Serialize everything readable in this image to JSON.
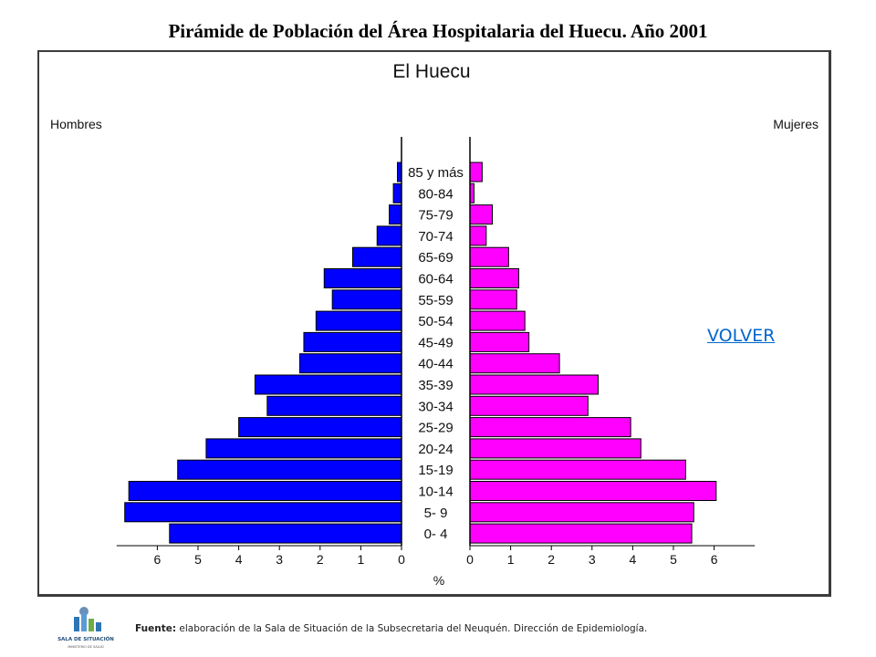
{
  "page": {
    "title": "Pirámide de Población del Área Hospitalaria del Huecu. Año 2001",
    "volver_label": "VOLVER",
    "footer_source_label": "Fuente:",
    "footer_source_text": " elaboración de la Sala de Situación de la Subsecretaria del Neuquén. Dirección de Epidemiología.",
    "logo_text": "SALA DE SITUACIÓN",
    "logo_subtext": "MINISTERIO DE SALUD"
  },
  "colors": {
    "men": "#0000ff",
    "women": "#ff00ff",
    "link": "#0066cc",
    "frame": "#3c3c3c"
  },
  "chart_data": {
    "type": "bar",
    "orientation": "horizontal",
    "title": "El Huecu",
    "left_label": "Hombres",
    "right_label": "Mujeres",
    "xlabel": "%",
    "categories": [
      "85 y más",
      "80-84",
      "75-79",
      "70-74",
      "65-69",
      "60-64",
      "55-59",
      "50-54",
      "45-49",
      "40-44",
      "35-39",
      "30-34",
      "25-29",
      "20-24",
      "15-19",
      "10-14",
      "5- 9",
      "0- 4"
    ],
    "series": [
      {
        "name": "Hombres",
        "values": [
          0.1,
          0.2,
          0.3,
          0.6,
          1.2,
          1.9,
          1.7,
          2.1,
          2.4,
          2.5,
          3.6,
          3.3,
          4.0,
          4.8,
          5.5,
          6.7,
          6.8,
          5.7
        ]
      },
      {
        "name": "Mujeres",
        "values": [
          0.3,
          0.1,
          0.55,
          0.4,
          0.95,
          1.2,
          1.15,
          1.35,
          1.45,
          2.2,
          3.15,
          2.9,
          3.95,
          4.2,
          5.3,
          6.05,
          5.5,
          5.45
        ]
      }
    ],
    "x_ticks": [
      0,
      1,
      2,
      3,
      4,
      5,
      6
    ],
    "xlim": [
      0,
      7
    ]
  }
}
